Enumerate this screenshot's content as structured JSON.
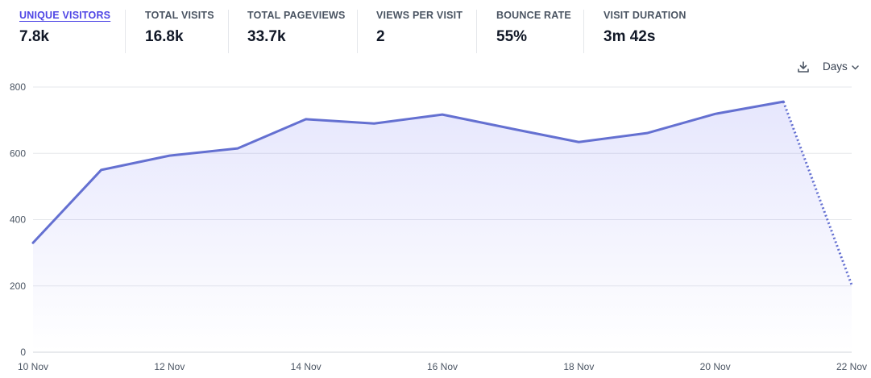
{
  "metrics": [
    {
      "label": "UNIQUE VISITORS",
      "value": "7.8k",
      "active": true
    },
    {
      "label": "TOTAL VISITS",
      "value": "16.8k"
    },
    {
      "label": "TOTAL PAGEVIEWS",
      "value": "33.7k"
    },
    {
      "label": "VIEWS PER VISIT",
      "value": "2"
    },
    {
      "label": "BOUNCE RATE",
      "value": "55%"
    },
    {
      "label": "VISIT DURATION",
      "value": "3m 42s"
    }
  ],
  "controls": {
    "download_icon": "download-icon",
    "interval_label": "Days",
    "interval_icon": "chevron-down-icon"
  },
  "colors": {
    "accent": "#6366f1",
    "line": "#6470d1",
    "grid": "#e5e7eb"
  },
  "chart_data": {
    "type": "area",
    "title": "",
    "xlabel": "",
    "ylabel": "",
    "x": [
      "10 Nov",
      "11 Nov",
      "12 Nov",
      "13 Nov",
      "14 Nov",
      "15 Nov",
      "16 Nov",
      "17 Nov",
      "18 Nov",
      "19 Nov",
      "20 Nov",
      "21 Nov",
      "22 Nov"
    ],
    "x_tick_labels": [
      "10 Nov",
      "12 Nov",
      "14 Nov",
      "16 Nov",
      "18 Nov",
      "20 Nov",
      "22 Nov"
    ],
    "series": [
      {
        "values": [
          330,
          550,
          593,
          615,
          703,
          690,
          717,
          675,
          634,
          661,
          719,
          756,
          203
        ],
        "incomplete_last_point": true
      }
    ],
    "y_ticks": [
      "0",
      "200",
      "400",
      "600",
      "800"
    ],
    "ylim": [
      0,
      800
    ],
    "grid": true,
    "legend": "none"
  }
}
